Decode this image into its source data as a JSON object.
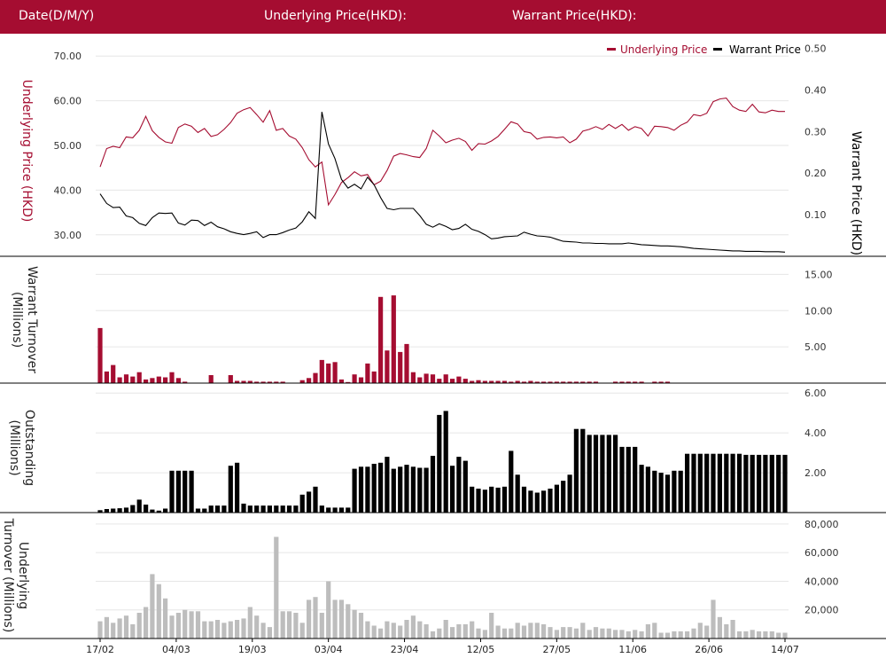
{
  "header": {
    "date_label": "Date(D/M/Y)",
    "underlying_label": "Underlying Price(HKD):",
    "warrant_label": "Warrant Price(HKD):"
  },
  "legend": {
    "underlying": "Underlying Price",
    "warrant": "Warrant Price"
  },
  "colors": {
    "header_bg": "#a50d31",
    "underlying": "#a50d31",
    "warrant": "#000000",
    "outstanding": "#000000",
    "underlying_turnover": "#bdbdbd"
  },
  "chart_data": [
    {
      "type": "line",
      "title": "",
      "x_ticks": [
        "17/02",
        "04/03",
        "19/03",
        "03/04",
        "23/04",
        "12/05",
        "27/05",
        "11/06",
        "26/06",
        "14/07"
      ],
      "y_left": {
        "label": "Underlying Price (HKD)",
        "ticks": [
          "70.00",
          "60.00",
          "50.00",
          "40.00",
          "30.00"
        ],
        "range": [
          25.2,
          75
        ]
      },
      "y_right": {
        "label": "Warrant  Price (HKD)",
        "ticks": [
          "0.50",
          "0.40",
          "0.30",
          "0.20",
          "0.10"
        ],
        "range": [
          0,
          0.535
        ]
      },
      "legend_position": "top-right",
      "series": [
        {
          "name": "Underlying Price",
          "axis": "left",
          "values": [
            45.2,
            49.3,
            49.8,
            49.5,
            51.9,
            51.7,
            53.4,
            56.5,
            53.3,
            51.8,
            50.8,
            50.5,
            54.0,
            54.8,
            54.3,
            52.9,
            53.8,
            52.0,
            52.4,
            53.6,
            55.1,
            57.2,
            58.0,
            58.5,
            56.9,
            55.2,
            57.8,
            53.4,
            53.8,
            52.1,
            51.4,
            49.5,
            46.8,
            45.2,
            46.3,
            36.7,
            39.0,
            41.7,
            42.8,
            44.1,
            43.2,
            43.5,
            41.2,
            42.0,
            44.4,
            47.6,
            48.2,
            47.9,
            47.5,
            47.3,
            49.3,
            53.4,
            52.1,
            50.6,
            51.2,
            51.6,
            50.9,
            48.9,
            50.4,
            50.3,
            51.0,
            52.0,
            53.6,
            55.3,
            54.8,
            53.1,
            52.8,
            51.4,
            51.8,
            51.9,
            51.7,
            51.9,
            50.6,
            51.4,
            53.2,
            53.6,
            54.2,
            53.6,
            54.7,
            53.8,
            54.7,
            53.4,
            54.2,
            53.8,
            52.1,
            54.3,
            54.2,
            54.0,
            53.4,
            54.5,
            55.2,
            56.9,
            56.6,
            57.2,
            59.8,
            60.4,
            60.6,
            58.7,
            57.9,
            57.6,
            59.2,
            57.5,
            57.3,
            57.9,
            57.6,
            57.6
          ]
        },
        {
          "name": "Warrant Price",
          "axis": "right",
          "values": [
            0.15,
            0.127,
            0.117,
            0.118,
            0.097,
            0.093,
            0.079,
            0.074,
            0.093,
            0.104,
            0.103,
            0.104,
            0.08,
            0.075,
            0.087,
            0.086,
            0.074,
            0.082,
            0.071,
            0.066,
            0.059,
            0.055,
            0.052,
            0.055,
            0.059,
            0.045,
            0.052,
            0.052,
            0.057,
            0.063,
            0.068,
            0.083,
            0.107,
            0.091,
            0.347,
            0.27,
            0.235,
            0.185,
            0.164,
            0.173,
            0.162,
            0.19,
            0.172,
            0.141,
            0.115,
            0.112,
            0.115,
            0.115,
            0.115,
            0.098,
            0.077,
            0.07,
            0.078,
            0.072,
            0.064,
            0.067,
            0.077,
            0.065,
            0.06,
            0.052,
            0.042,
            0.044,
            0.047,
            0.048,
            0.049,
            0.058,
            0.053,
            0.049,
            0.048,
            0.046,
            0.041,
            0.036,
            0.035,
            0.034,
            0.032,
            0.032,
            0.031,
            0.031,
            0.03,
            0.03,
            0.03,
            0.032,
            0.03,
            0.028,
            0.027,
            0.026,
            0.025,
            0.025,
            0.024,
            0.023,
            0.021,
            0.019,
            0.018,
            0.017,
            0.016,
            0.015,
            0.014,
            0.013,
            0.013,
            0.012,
            0.012,
            0.012,
            0.011,
            0.011,
            0.011,
            0.01
          ]
        }
      ]
    },
    {
      "type": "bar",
      "y_label": "Warrant  Turnover (Millions)",
      "ticks": [
        "15.00",
        "10.00",
        "5.00"
      ],
      "range": [
        0,
        17.5
      ],
      "values": [
        7.6,
        1.6,
        2.5,
        0.8,
        1.2,
        0.9,
        1.5,
        0.5,
        0.7,
        0.9,
        0.8,
        1.5,
        0.7,
        0.2,
        0,
        0,
        0,
        1.1,
        0,
        0,
        1.1,
        0.3,
        0.3,
        0.3,
        0.2,
        0.2,
        0.2,
        0.2,
        0.2,
        0,
        0,
        0.4,
        0.7,
        1.4,
        3.2,
        2.7,
        2.9,
        0.5,
        0.15,
        1.2,
        0.8,
        2.7,
        1.6,
        11.9,
        4.5,
        12.1,
        4.3,
        5.4,
        1.5,
        0.8,
        1.3,
        1.2,
        0.6,
        1.2,
        0.6,
        0.9,
        0.6,
        0.3,
        0.4,
        0.3,
        0.3,
        0.3,
        0.3,
        0.2,
        0.3,
        0.2,
        0.3,
        0.2,
        0.2,
        0.2,
        0.2,
        0.2,
        0.2,
        0.2,
        0.2,
        0.2,
        0.2,
        0,
        0,
        0.2,
        0.2,
        0.2,
        0.2,
        0.2,
        0,
        0.2,
        0.2,
        0.2,
        0,
        0,
        0,
        0,
        0,
        0,
        0,
        0,
        0,
        0,
        0,
        0,
        0,
        0,
        0,
        0,
        0,
        0
      ]
    },
    {
      "type": "bar",
      "y_label": "Outstanding (Millions)",
      "ticks": [
        "6.00",
        "4.00",
        "2.00"
      ],
      "range": [
        0,
        6.5
      ],
      "values": [
        0.12,
        0.18,
        0.2,
        0.22,
        0.25,
        0.38,
        0.65,
        0.4,
        0.15,
        0.1,
        0.2,
        2.1,
        2.1,
        2.1,
        2.1,
        0.2,
        0.2,
        0.35,
        0.35,
        0.35,
        2.35,
        2.5,
        0.45,
        0.35,
        0.35,
        0.35,
        0.35,
        0.35,
        0.35,
        0.35,
        0.35,
        0.9,
        1.05,
        1.3,
        0.35,
        0.25,
        0.25,
        0.25,
        0.25,
        2.2,
        2.3,
        2.3,
        2.45,
        2.5,
        2.8,
        2.2,
        2.3,
        2.4,
        2.3,
        2.25,
        2.25,
        2.85,
        4.9,
        5.1,
        2.35,
        2.8,
        2.6,
        1.3,
        1.2,
        1.15,
        1.3,
        1.25,
        1.3,
        3.1,
        1.9,
        1.3,
        1.1,
        1.0,
        1.1,
        1.2,
        1.4,
        1.6,
        1.9,
        4.2,
        4.2,
        3.9,
        3.9,
        3.9,
        3.9,
        3.9,
        3.3,
        3.3,
        3.3,
        2.4,
        2.3,
        2.1,
        2.0,
        1.9,
        2.1,
        2.1,
        2.95,
        2.95,
        2.95,
        2.95,
        2.95,
        2.95,
        2.95,
        2.95,
        2.95,
        2.9,
        2.9,
        2.9,
        2.9,
        2.9,
        2.9,
        2.9
      ]
    },
    {
      "type": "bar",
      "y_label": "Underlying Turnover (Millions)",
      "ticks": [
        "80,000",
        "60,000",
        "40,000",
        "20,000"
      ],
      "range": [
        0,
        88000
      ],
      "values": [
        12000,
        15000,
        11000,
        14000,
        16000,
        10000,
        18000,
        22000,
        45000,
        38000,
        28000,
        16000,
        18000,
        20000,
        19000,
        19000,
        12000,
        12000,
        13000,
        11000,
        12000,
        13000,
        14000,
        22000,
        16000,
        11000,
        8000,
        71000,
        19000,
        19000,
        18000,
        11000,
        27000,
        29000,
        18000,
        40000,
        27000,
        27000,
        24000,
        20000,
        18000,
        12000,
        9000,
        7000,
        12000,
        11000,
        9000,
        13000,
        16000,
        12000,
        10000,
        5000,
        7000,
        13000,
        8000,
        10000,
        10000,
        12000,
        7000,
        6000,
        18000,
        9000,
        7000,
        7000,
        11000,
        9000,
        11000,
        11000,
        10000,
        8000,
        6000,
        8000,
        8000,
        7000,
        11000,
        6000,
        8000,
        7000,
        7000,
        6000,
        6000,
        5000,
        6000,
        5000,
        10000,
        11000,
        4000,
        4000,
        5000,
        5000,
        5000,
        7000,
        11000,
        9000,
        27000,
        15000,
        10000,
        13000,
        5000,
        5000,
        6000,
        5000,
        5000,
        5000,
        4000,
        4000
      ]
    }
  ]
}
